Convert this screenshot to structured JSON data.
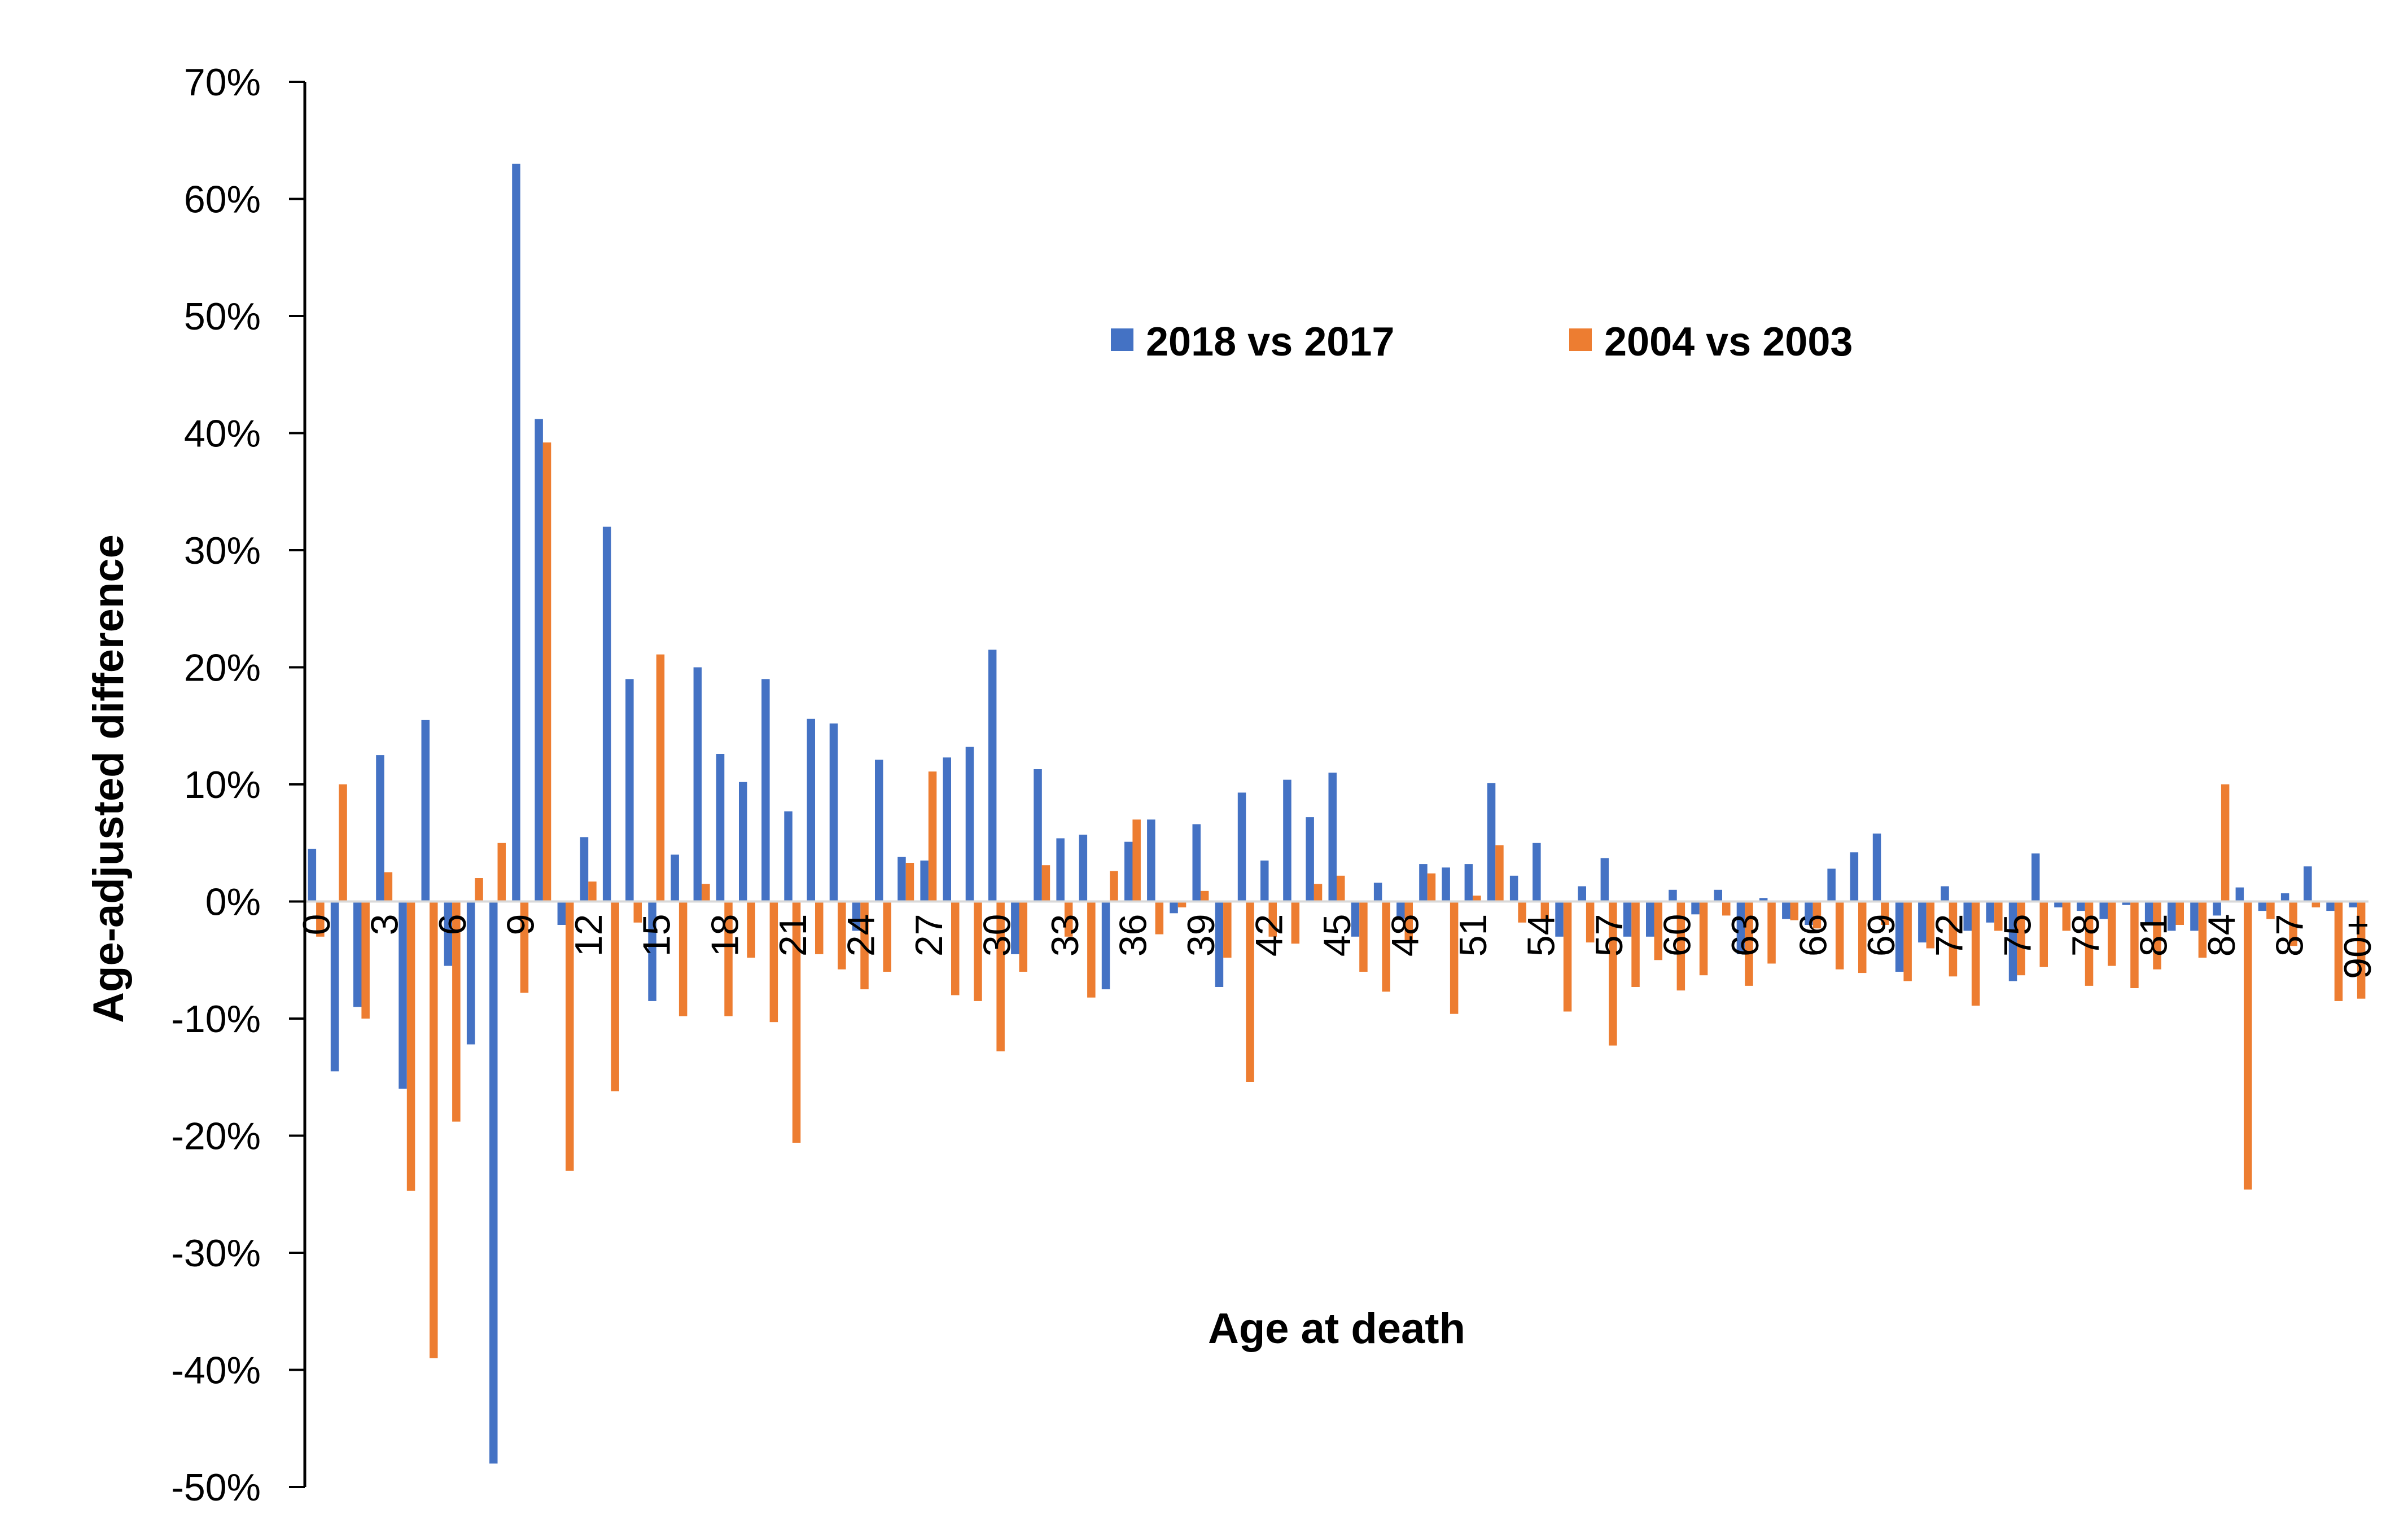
{
  "chart_data": {
    "type": "bar",
    "title": "",
    "xlabel": "Age at death",
    "ylabel": "Age-adjusted difference",
    "ylim": [
      -50,
      70
    ],
    "y_ticks": [
      "70%",
      "60%",
      "50%",
      "40%",
      "30%",
      "20%",
      "10%",
      "0%",
      "-10%",
      "-20%",
      "-30%",
      "-40%",
      "-50%"
    ],
    "y_tick_values": [
      70,
      60,
      50,
      40,
      30,
      20,
      10,
      0,
      -10,
      -20,
      -30,
      -40,
      -50
    ],
    "grid": false,
    "legend_position": "top-center",
    "categories": [
      "0",
      "1",
      "2",
      "3",
      "4",
      "5",
      "6",
      "7",
      "8",
      "9",
      "10",
      "11",
      "12",
      "13",
      "14",
      "15",
      "16",
      "17",
      "18",
      "19",
      "20",
      "21",
      "22",
      "23",
      "24",
      "25",
      "26",
      "27",
      "28",
      "29",
      "30",
      "31",
      "32",
      "33",
      "34",
      "35",
      "36",
      "37",
      "38",
      "39",
      "40",
      "41",
      "42",
      "43",
      "44",
      "45",
      "46",
      "47",
      "48",
      "49",
      "50",
      "51",
      "52",
      "53",
      "54",
      "55",
      "56",
      "57",
      "58",
      "59",
      "60",
      "61",
      "62",
      "63",
      "64",
      "65",
      "66",
      "67",
      "68",
      "69",
      "70",
      "71",
      "72",
      "73",
      "74",
      "75",
      "76",
      "77",
      "78",
      "79",
      "80",
      "81",
      "82",
      "83",
      "84",
      "85",
      "86",
      "87",
      "88",
      "89",
      "90+"
    ],
    "x_tick_labels": [
      "0",
      "3",
      "6",
      "9",
      "12",
      "15",
      "18",
      "21",
      "24",
      "27",
      "30",
      "33",
      "36",
      "39",
      "42",
      "45",
      "48",
      "51",
      "54",
      "57",
      "60",
      "63",
      "66",
      "69",
      "72",
      "75",
      "78",
      "81",
      "84",
      "87",
      "90+"
    ],
    "series": [
      {
        "name": "2018 vs 2017",
        "color": "#4472C4",
        "values": [
          4.5,
          -14.5,
          -9.0,
          12.5,
          -16.0,
          15.5,
          -5.5,
          -12.2,
          -48.0,
          63.0,
          41.2,
          -2.0,
          5.5,
          32.0,
          19.0,
          -8.5,
          4.0,
          20.0,
          12.6,
          10.2,
          19.0,
          7.7,
          15.6,
          15.2,
          -2.5,
          12.1,
          3.8,
          3.5,
          12.3,
          13.2,
          21.5,
          -4.5,
          11.3,
          5.4,
          5.7,
          -7.5,
          5.1,
          7.0,
          -1.0,
          6.6,
          -7.3,
          9.3,
          3.5,
          10.4,
          7.2,
          11.0,
          -3.0,
          1.6,
          -1.5,
          3.2,
          2.9,
          3.2,
          10.1,
          2.2,
          5.0,
          -3.0,
          1.3,
          3.7,
          -3.0,
          -3.0,
          1.0,
          -1.1,
          1.0,
          -4.5,
          0.3,
          -1.5,
          -2.0,
          2.8,
          4.2,
          5.8,
          -6.0,
          -3.5,
          1.3,
          -2.5,
          -1.8,
          -6.8,
          4.1,
          -0.5,
          -0.8,
          -1.5,
          -0.3,
          -1.8,
          -2.5,
          -2.5,
          -1.2,
          1.2,
          -0.8,
          0.7,
          3.0,
          -0.8,
          -0.5
        ]
      },
      {
        "name": "2004 vs 2003",
        "color": "#ED7D31",
        "values": [
          -3.0,
          10.0,
          -10.0,
          2.5,
          -24.7,
          -39.0,
          -18.8,
          2.0,
          5.0,
          -7.8,
          39.2,
          -23.0,
          1.7,
          -16.2,
          -1.8,
          21.1,
          -9.8,
          1.5,
          -9.8,
          -4.8,
          -10.3,
          -20.6,
          -4.5,
          -5.8,
          -7.5,
          -6.0,
          3.3,
          11.1,
          -8.0,
          -8.5,
          -12.8,
          -6.0,
          3.1,
          -3.0,
          -8.2,
          2.6,
          7.0,
          -2.8,
          -0.5,
          0.9,
          -4.8,
          -15.4,
          -3.0,
          -3.6,
          1.5,
          2.2,
          -6.0,
          -7.7,
          -3.5,
          2.4,
          -9.6,
          0.5,
          4.8,
          -1.8,
          -1.5,
          -9.4,
          -3.5,
          -12.3,
          -7.3,
          -5.0,
          -7.6,
          -6.3,
          -1.2,
          -7.2,
          -5.3,
          -1.6,
          -2.3,
          -5.8,
          -6.1,
          -2.0,
          -6.8,
          -4.0,
          -6.4,
          -8.9,
          -2.5,
          -6.3,
          -5.6,
          -2.5,
          -7.2,
          -5.5,
          -7.4,
          -5.8,
          -2.0,
          -4.8,
          10.0,
          -24.6,
          -1.5,
          -3.8,
          -0.5,
          -8.5,
          -8.3
        ]
      }
    ]
  }
}
